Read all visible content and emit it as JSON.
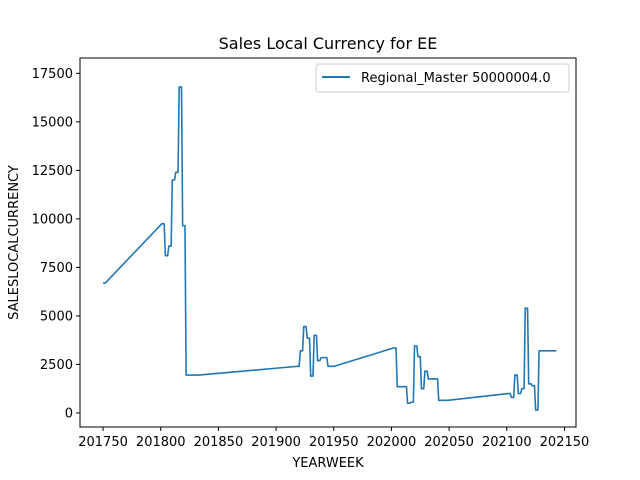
{
  "chart_data": {
    "type": "line",
    "title": "Sales Local Currency for EE",
    "xlabel": "YEARWEEK",
    "ylabel": "SALESLOCALCURRENCY",
    "xlim": [
      201730,
      202160
    ],
    "ylim": [
      -725,
      18290
    ],
    "xticks": [
      201750,
      201800,
      201850,
      201900,
      201950,
      202000,
      202050,
      202100,
      202150
    ],
    "yticks": [
      0,
      2500,
      5000,
      7500,
      10000,
      12500,
      15000,
      17500
    ],
    "grid": false,
    "legend_position": "top-right",
    "series": [
      {
        "name": "Regional_Master 50000004.0",
        "color": "#1f77b4",
        "x": [
          201750,
          201752,
          201801,
          201803,
          201804,
          201806,
          201807,
          201809,
          201810,
          201812,
          201813,
          201815,
          201816,
          201818,
          201819,
          201821,
          201822,
          201824,
          201825,
          201827,
          201828,
          201830,
          201831,
          201833,
          201918,
          201920,
          201921,
          201923,
          201924,
          201926,
          201927,
          201929,
          201930,
          201932,
          201933,
          201935,
          201936,
          201938,
          201939,
          201941,
          201942,
          201944,
          201945,
          201947,
          201948,
          201950,
          202002,
          202004,
          202005,
          202007,
          202008,
          202010,
          202011,
          202013,
          202014,
          202016,
          202017,
          202019,
          202020,
          202022,
          202023,
          202025,
          202026,
          202028,
          202029,
          202031,
          202032,
          202034,
          202035,
          202037,
          202038,
          202040,
          202041,
          202043,
          202044,
          202046,
          202047,
          202049,
          202101,
          202103,
          202104,
          202106,
          202107,
          202109,
          202110,
          202112,
          202113,
          202115,
          202116,
          202118,
          202119,
          202121,
          202122,
          202124,
          202125,
          202127,
          202128,
          202130,
          202131,
          202133,
          202134,
          202136,
          202137,
          202139,
          202140,
          202142,
          202143
        ],
        "values": [
          6700,
          6700,
          9750,
          9750,
          8100,
          8100,
          8600,
          8600,
          12000,
          12000,
          12400,
          12400,
          16800,
          16800,
          9650,
          9650,
          1950,
          1950,
          1950,
          1950,
          1950,
          1950,
          1950,
          1950,
          2400,
          2400,
          3200,
          3200,
          4450,
          4450,
          3850,
          3850,
          1900,
          1900,
          4000,
          4000,
          2700,
          2700,
          2850,
          2850,
          2850,
          2850,
          2400,
          2400,
          2400,
          2400,
          3350,
          3350,
          1350,
          1350,
          1350,
          1350,
          1350,
          1350,
          500,
          500,
          550,
          550,
          3450,
          3450,
          2900,
          2900,
          1250,
          1250,
          2150,
          2150,
          1750,
          1750,
          1750,
          1750,
          1750,
          1750,
          650,
          650,
          650,
          650,
          650,
          650,
          1000,
          1000,
          800,
          800,
          1950,
          1950,
          1000,
          1000,
          1250,
          1250,
          5400,
          5400,
          1500,
          1500,
          1400,
          1400,
          150,
          150,
          3200,
          3200,
          3200,
          3200,
          3200,
          3200,
          3200,
          3200,
          3200,
          3200,
          3200
        ]
      }
    ]
  }
}
